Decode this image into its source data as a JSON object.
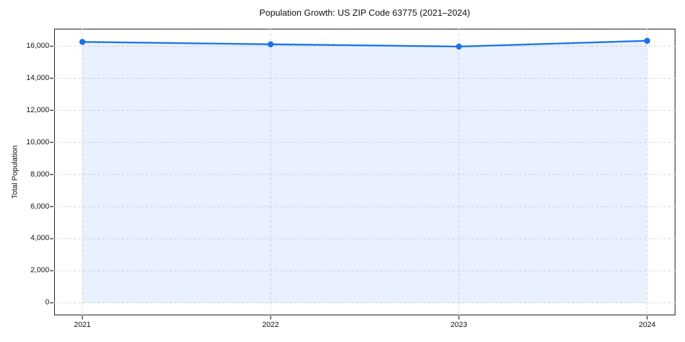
{
  "page": {
    "background": "#ffffff"
  },
  "chart_data": {
    "type": "area",
    "title": "Population Growth: US ZIP Code 63775 (2021–2024)",
    "xlabel": "",
    "ylabel": "Total Population",
    "series": [
      {
        "name": "Total Population",
        "x": [
          2021,
          2022,
          2023,
          2024
        ],
        "values": [
          16270,
          16120,
          15980,
          16340
        ]
      }
    ],
    "xlim": [
      2020.85,
      2024.15
    ],
    "ylim": [
      -780,
      17090
    ],
    "xticks": {
      "values": [
        2021,
        2022,
        2023,
        2024
      ],
      "labels": [
        "2021",
        "2022",
        "2023",
        "2024"
      ]
    },
    "yticks": {
      "values": [
        0,
        2000,
        4000,
        6000,
        8000,
        10000,
        12000,
        14000,
        16000
      ],
      "labels": [
        "0",
        "2,000",
        "4,000",
        "6,000",
        "8,000",
        "10,000",
        "12,000",
        "14,000",
        "16,000"
      ]
    },
    "grid": true,
    "grid_style": "dashed",
    "legend": "none",
    "marker": "circle",
    "fill_baseline": 0,
    "colors": {
      "line": "#1a73e8",
      "fill": "#1a73e8",
      "fill_opacity": 0.1,
      "grid": "#d9d9d9",
      "spine": "#1a1a1a",
      "text": "#111111",
      "background": "#ffffff"
    }
  }
}
